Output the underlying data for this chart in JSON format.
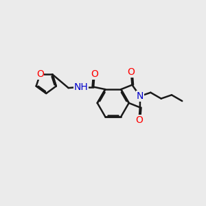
{
  "bg_color": "#ebebeb",
  "bond_color": "#1a1a1a",
  "bond_width": 1.8,
  "dbo": 0.055,
  "atom_colors": {
    "O": "#ff0000",
    "N": "#0000cc",
    "C": "#1a1a1a"
  },
  "font_size": 10,
  "fig_size": [
    3.0,
    3.0
  ],
  "dpi": 100,
  "xlim": [
    0,
    10
  ],
  "ylim": [
    1.5,
    7.5
  ]
}
